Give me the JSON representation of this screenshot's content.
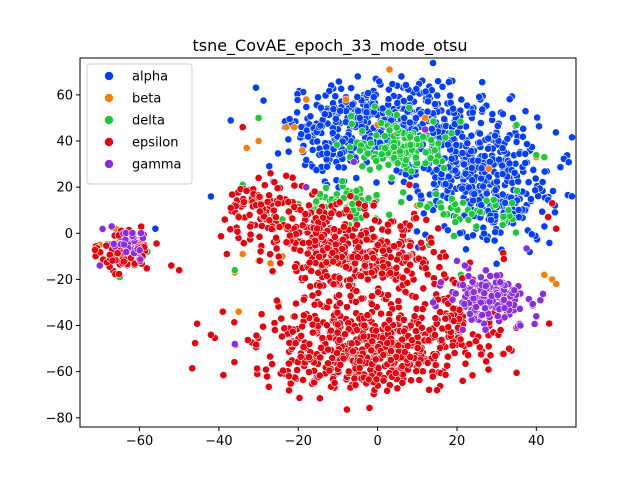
{
  "chart_data": {
    "type": "scatter",
    "title": "tsne_CovAE_epoch_33_mode_otsu",
    "xlabel": "",
    "ylabel": "",
    "xlim": [
      -75,
      50
    ],
    "ylim": [
      -84,
      76
    ],
    "xticks": [
      -60,
      -40,
      -20,
      0,
      20,
      40
    ],
    "yticks": [
      -80,
      -60,
      -40,
      -20,
      0,
      20,
      40,
      60
    ],
    "grid": false,
    "legend_position": "top-left",
    "series": [
      {
        "name": "alpha",
        "color": "#023eff",
        "clusters": [
          {
            "cx": 2,
            "cy": 50,
            "sx": 12,
            "sy": 8,
            "n": 320
          },
          {
            "cx": 22,
            "cy": 30,
            "sx": 10,
            "sy": 12,
            "n": 360
          },
          {
            "cx": 32,
            "cy": 10,
            "sx": 6,
            "sy": 7,
            "n": 120
          },
          {
            "cx": -12,
            "cy": 40,
            "sx": 6,
            "sy": 10,
            "n": 90
          }
        ],
        "points": [
          [
            -42,
            16
          ],
          [
            -5,
            68
          ],
          [
            6,
            68
          ],
          [
            -56,
            2
          ]
        ]
      },
      {
        "name": "beta",
        "color": "#ff7c00",
        "clusters": [],
        "points": [
          [
            -30,
            40
          ],
          [
            -23,
            46
          ],
          [
            -21,
            46
          ],
          [
            -32,
            14
          ],
          [
            -36,
            -17
          ],
          [
            -35,
            -34
          ],
          [
            -24,
            -10
          ],
          [
            -30,
            -12
          ],
          [
            -25,
            -30
          ],
          [
            -27,
            -13
          ],
          [
            -22,
            13
          ],
          [
            -33,
            37
          ],
          [
            -18,
            58
          ],
          [
            -8,
            58
          ],
          [
            3,
            71
          ],
          [
            0,
            47
          ],
          [
            3,
            35
          ],
          [
            12,
            50
          ],
          [
            28,
            28
          ],
          [
            40,
            33
          ],
          [
            42,
            -18
          ],
          [
            44,
            -20
          ],
          [
            45,
            -22
          ],
          [
            -19,
            36
          ],
          [
            -20,
            0
          ],
          [
            -28,
            8
          ],
          [
            -34,
            -9
          ],
          [
            -66,
            2
          ],
          [
            -70,
            -5
          ],
          [
            10,
            12
          ]
        ]
      },
      {
        "name": "delta",
        "color": "#1ac938",
        "clusters": [
          {
            "cx": 6,
            "cy": 38,
            "sx": 6,
            "sy": 6,
            "n": 130
          },
          {
            "cx": -8,
            "cy": 12,
            "sx": 5,
            "sy": 4,
            "n": 70
          },
          {
            "cx": 24,
            "cy": 10,
            "sx": 6,
            "sy": 4,
            "n": 40
          }
        ],
        "points": [
          [
            -34,
            21
          ],
          [
            -65,
            -19
          ],
          [
            -58,
            -8
          ],
          [
            33,
            10
          ],
          [
            40,
            34
          ],
          [
            35,
            47
          ],
          [
            42,
            33
          ],
          [
            -24,
            6
          ],
          [
            -36,
            -16
          ],
          [
            -30,
            50
          ],
          [
            21,
            -18
          ],
          [
            13,
            -5
          ]
        ]
      },
      {
        "name": "epsilon",
        "color": "#e8000b",
        "clusters": [
          {
            "cx": -4,
            "cy": -12,
            "sx": 10,
            "sy": 10,
            "n": 360
          },
          {
            "cx": -3,
            "cy": -50,
            "sx": 14,
            "sy": 9,
            "n": 560
          },
          {
            "cx": -28,
            "cy": 10,
            "sx": 5,
            "sy": 8,
            "n": 90
          },
          {
            "cx": 20,
            "cy": -36,
            "sx": 5,
            "sy": 7,
            "n": 70
          },
          {
            "cx": -64,
            "cy": -8,
            "sx": 3,
            "sy": 4,
            "n": 110
          },
          {
            "cx": -17,
            "cy": 0,
            "sx": 5,
            "sy": 8,
            "n": 90
          }
        ],
        "points": [
          [
            -52,
            -14
          ],
          [
            -50,
            -16
          ],
          [
            -42,
            -44
          ],
          [
            -39,
            -34
          ],
          [
            -34,
            46
          ],
          [
            -30,
            24
          ],
          [
            -27,
            26
          ],
          [
            -37,
            11
          ],
          [
            -35,
            7
          ],
          [
            -38,
            -9
          ],
          [
            43,
            7
          ],
          [
            44,
            13
          ],
          [
            45,
            2
          ],
          [
            35,
            -41
          ],
          [
            31,
            -42
          ],
          [
            28,
            -49
          ]
        ]
      },
      {
        "name": "gamma",
        "color": "#8b2be2",
        "clusters": [
          {
            "cx": 28,
            "cy": -28,
            "sx": 5,
            "sy": 5,
            "n": 170
          },
          {
            "cx": -63,
            "cy": -5,
            "sx": 3,
            "sy": 3,
            "n": 25
          }
        ],
        "points": [
          [
            -67,
            3
          ],
          [
            -70,
            -14
          ],
          [
            -6,
            31
          ],
          [
            12,
            45
          ],
          [
            -18,
            20
          ],
          [
            36,
            -40
          ],
          [
            40,
            -36
          ],
          [
            22,
            -14
          ],
          [
            20,
            -12
          ],
          [
            -36,
            -48
          ]
        ]
      }
    ]
  }
}
